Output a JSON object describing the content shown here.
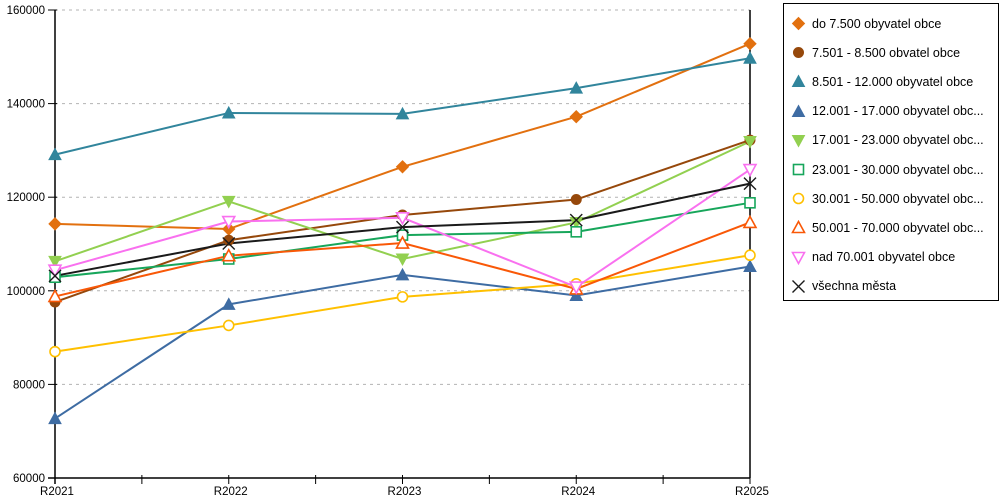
{
  "chart_data": {
    "type": "line",
    "title": "",
    "xlabel": "",
    "ylabel": "",
    "categories": [
      "R2021",
      "R2022",
      "R2023",
      "R2024",
      "R2025"
    ],
    "ylim": [
      60000,
      160000
    ],
    "ytick_step": 20000,
    "grid": "dashed-horizontal-gray",
    "legend_position": "right-outside-boxed",
    "series": [
      {
        "name": "do 7.500 obyvatel obce",
        "marker": "diamond",
        "fill": "filled",
        "color": "#E2700F",
        "values": [
          114300,
          113200,
          126500,
          137200,
          152800
        ]
      },
      {
        "name": "7.501 - 8.500 obvatel obce",
        "marker": "circle",
        "fill": "filled",
        "color": "#96480B",
        "values": [
          97600,
          110800,
          116200,
          119500,
          132200
        ]
      },
      {
        "name": "8.501 - 12.000 obyvatel obce",
        "marker": "triangle-up",
        "fill": "filled",
        "color": "#31859C",
        "values": [
          129100,
          138000,
          137800,
          143300,
          149700
        ]
      },
      {
        "name": "12.001 - 17.000 obyvatel obc...",
        "marker": "triangle-up",
        "fill": "filled",
        "color": "#3E6CA3",
        "values": [
          72700,
          97100,
          103400,
          99000,
          105200
        ]
      },
      {
        "name": "17.001 - 23.000 obyvatel obc...",
        "marker": "triangle-down",
        "fill": "filled",
        "color": "#92D050",
        "values": [
          106300,
          119100,
          106800,
          114600,
          131900
        ]
      },
      {
        "name": "23.001 - 30.000 obyvatel obc...",
        "marker": "square",
        "fill": "open",
        "color": "#17A65B",
        "values": [
          102900,
          106800,
          111900,
          112600,
          118800
        ]
      },
      {
        "name": "30.001 - 50.000 obyvatel obc...",
        "marker": "circle",
        "fill": "open",
        "color": "#FFC000",
        "values": [
          87000,
          92600,
          98700,
          101500,
          107600
        ]
      },
      {
        "name": "50.001 - 70.000 obyvatel obc...",
        "marker": "triangle-up",
        "fill": "open",
        "color": "#F95807",
        "values": [
          98800,
          107500,
          110200,
          100400,
          114600
        ]
      },
      {
        "name": "nad 70.001 obyvatel obce",
        "marker": "triangle-down",
        "fill": "open",
        "color": "#F970EF",
        "values": [
          104400,
          114800,
          115600,
          100800,
          125900
        ]
      },
      {
        "name": "všechna města",
        "marker": "x",
        "fill": "line",
        "color": "#1A1A1A",
        "values": [
          103200,
          110100,
          113600,
          115100,
          122900
        ]
      }
    ],
    "colors": {
      "axis": "#000000",
      "gridline": "#B3B3B3",
      "background": "#FFFFFF",
      "legend_border": "#000000"
    }
  }
}
